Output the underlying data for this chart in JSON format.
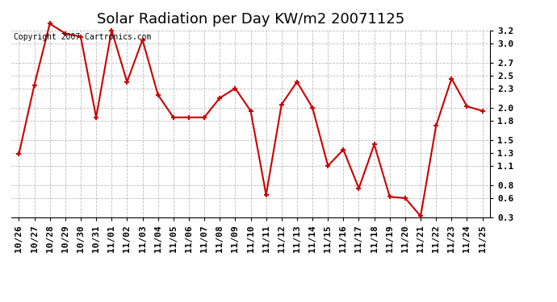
{
  "title": "Solar Radiation per Day KW/m2 20071125",
  "copyright_text": "Copyright 2007 Cartronics.com",
  "labels": [
    "10/26",
    "10/27",
    "10/28",
    "10/29",
    "10/30",
    "10/31",
    "11/01",
    "11/02",
    "11/03",
    "11/04",
    "11/05",
    "11/06",
    "11/07",
    "11/08",
    "11/09",
    "11/10",
    "11/11",
    "11/12",
    "11/13",
    "11/14",
    "11/15",
    "11/16",
    "11/17",
    "11/18",
    "11/19",
    "11/20",
    "11/21",
    "11/22",
    "11/23",
    "11/24",
    "11/25"
  ],
  "values": [
    1.28,
    2.35,
    3.3,
    3.15,
    3.1,
    1.85,
    3.2,
    2.4,
    3.05,
    2.2,
    1.85,
    1.85,
    1.85,
    2.15,
    2.3,
    1.95,
    0.65,
    2.05,
    2.4,
    2.0,
    1.1,
    1.35,
    0.75,
    1.43,
    0.62,
    0.6,
    0.32,
    1.72,
    2.45,
    2.02,
    1.95
  ],
  "line_color": "#cc0000",
  "marker": "+",
  "marker_size": 5,
  "line_width": 1.5,
  "ylim_min": 0.3,
  "ylim_max": 3.2,
  "ytick_positions": [
    0.3,
    0.6,
    0.8,
    1.1,
    1.3,
    1.5,
    1.8,
    2.0,
    2.3,
    2.5,
    2.7,
    3.0,
    3.2
  ],
  "ytick_labels": [
    "0.3",
    "0.6",
    "0.8",
    "1.1",
    "1.3",
    "1.5",
    "1.8",
    "2.0",
    "2.3",
    "2.5",
    "2.7",
    "3.0",
    "3.2"
  ],
  "bg_color": "#ffffff",
  "grid_color": "#bbbbbb",
  "title_fontsize": 13,
  "tick_fontsize": 8,
  "copyright_fontsize": 7
}
